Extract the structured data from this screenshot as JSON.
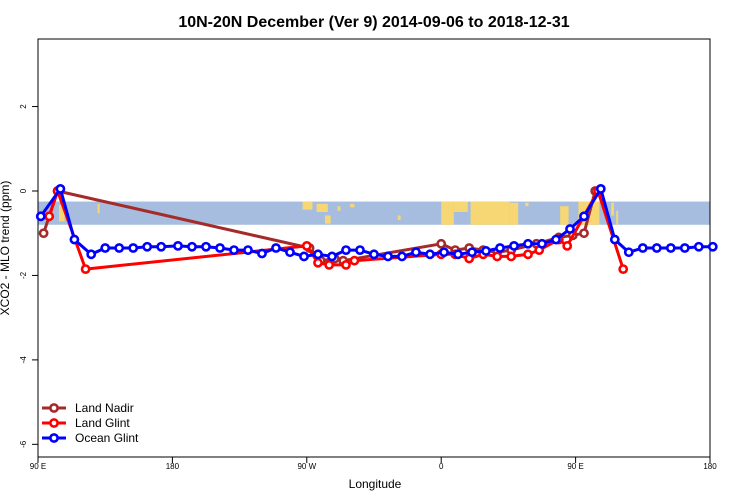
{
  "chart_data": {
    "type": "line",
    "title": "10N-20N December (Ver 9)   2014-09-06 to 2018-12-31",
    "xlabel": "Longitude",
    "ylabel": "XCO2 - MLO trend (ppm)",
    "xlim": [
      -270,
      -30
    ],
    "ylim": [
      -6.3,
      3.6
    ],
    "x_ticks": [
      {
        "value": -270,
        "label": "90 E"
      },
      {
        "value": -222,
        "label": "180"
      },
      {
        "value": -174,
        "label": "90 W"
      },
      {
        "value": -126,
        "label": "0"
      },
      {
        "value": -78,
        "label": "90 E"
      },
      {
        "value": -30,
        "label": "180"
      }
    ],
    "y_ticks": [
      {
        "value": 2,
        "label": "2"
      },
      {
        "value": 0,
        "label": "0"
      },
      {
        "value": -2,
        "label": "-2"
      },
      {
        "value": -4,
        "label": "-4"
      },
      {
        "value": -6,
        "label": "-6"
      }
    ],
    "map_band": {
      "y_top": -0.25,
      "y_bottom": -0.8,
      "ocean_color": "#a6bddf",
      "land_color": "#f7d774"
    },
    "legend_position": "bottom-left",
    "series": [
      {
        "name": "Land Nadir",
        "color": "#a52a2a",
        "points": [
          [
            -268,
            -1.0
          ],
          [
            -263,
            0.0
          ],
          [
            -173,
            -1.35
          ],
          [
            -169,
            -1.65
          ],
          [
            -164,
            -1.6
          ],
          [
            -161,
            -1.65
          ],
          [
            -126,
            -1.25
          ],
          [
            -121,
            -1.4
          ],
          [
            -116,
            -1.35
          ],
          [
            -111,
            -1.4
          ],
          [
            -106,
            -1.45
          ],
          [
            -101,
            -1.4
          ],
          [
            -92,
            -1.25
          ],
          [
            -84,
            -1.1
          ],
          [
            -79,
            -1.05
          ],
          [
            -75,
            -1.0
          ],
          [
            -71,
            0.0
          ]
        ]
      },
      {
        "name": "Land Glint",
        "color": "#ff0000",
        "points": [
          [
            -266,
            -0.6
          ],
          [
            -263,
            0.0
          ],
          [
            -253,
            -1.85
          ],
          [
            -174,
            -1.3
          ],
          [
            -170,
            -1.7
          ],
          [
            -166,
            -1.75
          ],
          [
            -160,
            -1.75
          ],
          [
            -157,
            -1.65
          ],
          [
            -126,
            -1.5
          ],
          [
            -121,
            -1.5
          ],
          [
            -116,
            -1.6
          ],
          [
            -111,
            -1.5
          ],
          [
            -106,
            -1.55
          ],
          [
            -101,
            -1.55
          ],
          [
            -95,
            -1.5
          ],
          [
            -91,
            -1.4
          ],
          [
            -84,
            -1.15
          ],
          [
            -81,
            -1.3
          ],
          [
            -70,
            0.0
          ],
          [
            -61,
            -1.85
          ]
        ]
      },
      {
        "name": "Ocean Glint",
        "color": "#0000ff",
        "points": [
          [
            -269,
            -0.6
          ],
          [
            -262,
            0.05
          ],
          [
            -257,
            -1.15
          ],
          [
            -251,
            -1.5
          ],
          [
            -246,
            -1.35
          ],
          [
            -241,
            -1.35
          ],
          [
            -236,
            -1.35
          ],
          [
            -231,
            -1.32
          ],
          [
            -226,
            -1.32
          ],
          [
            -220,
            -1.3
          ],
          [
            -215,
            -1.32
          ],
          [
            -210,
            -1.32
          ],
          [
            -205,
            -1.35
          ],
          [
            -200,
            -1.4
          ],
          [
            -195,
            -1.4
          ],
          [
            -190,
            -1.48
          ],
          [
            -185,
            -1.35
          ],
          [
            -180,
            -1.45
          ],
          [
            -175,
            -1.55
          ],
          [
            -170,
            -1.5
          ],
          [
            -165,
            -1.55
          ],
          [
            -160,
            -1.4
          ],
          [
            -155,
            -1.4
          ],
          [
            -150,
            -1.5
          ],
          [
            -145,
            -1.55
          ],
          [
            -140,
            -1.55
          ],
          [
            -135,
            -1.45
          ],
          [
            -130,
            -1.5
          ],
          [
            -125,
            -1.45
          ],
          [
            -120,
            -1.5
          ],
          [
            -115,
            -1.45
          ],
          [
            -110,
            -1.42
          ],
          [
            -105,
            -1.35
          ],
          [
            -100,
            -1.3
          ],
          [
            -95,
            -1.25
          ],
          [
            -90,
            -1.25
          ],
          [
            -85,
            -1.15
          ],
          [
            -80,
            -0.9
          ],
          [
            -75,
            -0.6
          ],
          [
            -69,
            0.05
          ],
          [
            -64,
            -1.15
          ],
          [
            -59,
            -1.45
          ],
          [
            -54,
            -1.35
          ],
          [
            -49,
            -1.35
          ],
          [
            -44,
            -1.35
          ],
          [
            -39,
            -1.35
          ],
          [
            -34,
            -1.32
          ],
          [
            -29,
            -1.32
          ]
        ]
      }
    ]
  }
}
